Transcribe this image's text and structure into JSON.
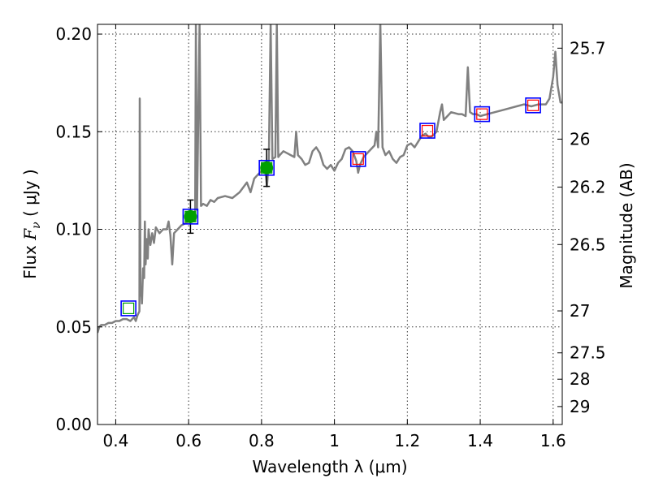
{
  "chart_data": {
    "type": "scatter",
    "xlabel": "Wavelength  λ (μm)",
    "ylabel_prefix": "Flux  ",
    "ylabel_var": "F",
    "ylabel_sub": "ν",
    "ylabel_suffix": "  ( μJy )",
    "y2label": "Magnitude (AB)",
    "xlim": [
      0.35,
      1.625
    ],
    "ylim": [
      0.0,
      0.205
    ],
    "grid": true,
    "x_ticks": [
      0.4,
      0.6,
      0.8,
      1.0,
      1.2,
      1.4,
      1.6
    ],
    "x_tick_labels": [
      "0.4",
      "0.6",
      "0.8",
      "1",
      "1.2",
      "1.4",
      "1.6"
    ],
    "y_ticks": [
      0.0,
      0.05,
      0.1,
      0.15,
      0.2
    ],
    "y_tick_labels": [
      "0.00",
      "0.05",
      "0.10",
      "0.15",
      "0.20"
    ],
    "y2_ticks": [
      {
        "label": "25.7",
        "flux": 0.1928
      },
      {
        "label": "26",
        "flux": 0.1462
      },
      {
        "label": "26.2",
        "flux": 0.1216
      },
      {
        "label": "26.5",
        "flux": 0.0922
      },
      {
        "label": "27",
        "flux": 0.0582
      },
      {
        "label": "27.5",
        "flux": 0.0367
      },
      {
        "label": "28",
        "flux": 0.0232
      },
      {
        "label": "29",
        "flux": 0.0092
      }
    ],
    "series": [
      {
        "kind": "model_spectrum",
        "color": "#808080",
        "points": [
          [
            0.35,
            0.047
          ],
          [
            0.355,
            0.05
          ],
          [
            0.36,
            0.051
          ],
          [
            0.37,
            0.051
          ],
          [
            0.38,
            0.052
          ],
          [
            0.39,
            0.052
          ],
          [
            0.4,
            0.053
          ],
          [
            0.41,
            0.053
          ],
          [
            0.42,
            0.054
          ],
          [
            0.43,
            0.054
          ],
          [
            0.44,
            0.053
          ],
          [
            0.45,
            0.055
          ],
          [
            0.455,
            0.053
          ],
          [
            0.46,
            0.056
          ],
          [
            0.465,
            0.058
          ],
          [
            0.466,
            0.167
          ],
          [
            0.468,
            0.066
          ],
          [
            0.47,
            0.07
          ],
          [
            0.472,
            0.062
          ],
          [
            0.475,
            0.08
          ],
          [
            0.478,
            0.075
          ],
          [
            0.48,
            0.104
          ],
          [
            0.482,
            0.082
          ],
          [
            0.485,
            0.095
          ],
          [
            0.488,
            0.085
          ],
          [
            0.49,
            0.1
          ],
          [
            0.495,
            0.092
          ],
          [
            0.5,
            0.098
          ],
          [
            0.505,
            0.093
          ],
          [
            0.51,
            0.101
          ],
          [
            0.52,
            0.098
          ],
          [
            0.53,
            0.1
          ],
          [
            0.54,
            0.1
          ],
          [
            0.545,
            0.104
          ],
          [
            0.55,
            0.097
          ],
          [
            0.555,
            0.082
          ],
          [
            0.56,
            0.098
          ],
          [
            0.57,
            0.1
          ],
          [
            0.58,
            0.102
          ],
          [
            0.59,
            0.103
          ],
          [
            0.6,
            0.104
          ],
          [
            0.61,
            0.106
          ],
          [
            0.618,
            0.109
          ],
          [
            0.62,
            0.205
          ],
          [
            0.623,
            0.11
          ],
          [
            0.63,
            0.205
          ],
          [
            0.634,
            0.112
          ],
          [
            0.64,
            0.113
          ],
          [
            0.65,
            0.112
          ],
          [
            0.66,
            0.115
          ],
          [
            0.67,
            0.114
          ],
          [
            0.68,
            0.116
          ],
          [
            0.7,
            0.117
          ],
          [
            0.72,
            0.116
          ],
          [
            0.74,
            0.119
          ],
          [
            0.76,
            0.124
          ],
          [
            0.77,
            0.119
          ],
          [
            0.78,
            0.126
          ],
          [
            0.79,
            0.128
          ],
          [
            0.8,
            0.13
          ],
          [
            0.81,
            0.131
          ],
          [
            0.815,
            0.122
          ],
          [
            0.82,
            0.136
          ],
          [
            0.825,
            0.205
          ],
          [
            0.83,
            0.136
          ],
          [
            0.838,
            0.137
          ],
          [
            0.842,
            0.205
          ],
          [
            0.846,
            0.137
          ],
          [
            0.85,
            0.138
          ],
          [
            0.86,
            0.14
          ],
          [
            0.87,
            0.139
          ],
          [
            0.88,
            0.138
          ],
          [
            0.89,
            0.137
          ],
          [
            0.895,
            0.15
          ],
          [
            0.9,
            0.138
          ],
          [
            0.91,
            0.136
          ],
          [
            0.92,
            0.133
          ],
          [
            0.93,
            0.134
          ],
          [
            0.94,
            0.14
          ],
          [
            0.95,
            0.142
          ],
          [
            0.96,
            0.139
          ],
          [
            0.97,
            0.133
          ],
          [
            0.98,
            0.131
          ],
          [
            0.99,
            0.133
          ],
          [
            1.0,
            0.13
          ],
          [
            1.01,
            0.134
          ],
          [
            1.02,
            0.136
          ],
          [
            1.03,
            0.141
          ],
          [
            1.04,
            0.142
          ],
          [
            1.05,
            0.14
          ],
          [
            1.06,
            0.135
          ],
          [
            1.065,
            0.129
          ],
          [
            1.07,
            0.133
          ],
          [
            1.08,
            0.137
          ],
          [
            1.09,
            0.139
          ],
          [
            1.1,
            0.141
          ],
          [
            1.11,
            0.143
          ],
          [
            1.115,
            0.15
          ],
          [
            1.12,
            0.142
          ],
          [
            1.126,
            0.205
          ],
          [
            1.132,
            0.142
          ],
          [
            1.14,
            0.138
          ],
          [
            1.15,
            0.14
          ],
          [
            1.16,
            0.136
          ],
          [
            1.17,
            0.134
          ],
          [
            1.18,
            0.137
          ],
          [
            1.19,
            0.138
          ],
          [
            1.2,
            0.143
          ],
          [
            1.21,
            0.144
          ],
          [
            1.22,
            0.142
          ],
          [
            1.23,
            0.145
          ],
          [
            1.24,
            0.148
          ],
          [
            1.25,
            0.149
          ],
          [
            1.26,
            0.147
          ],
          [
            1.27,
            0.148
          ],
          [
            1.28,
            0.15
          ],
          [
            1.29,
            0.16
          ],
          [
            1.295,
            0.164
          ],
          [
            1.3,
            0.156
          ],
          [
            1.31,
            0.158
          ],
          [
            1.32,
            0.16
          ],
          [
            1.34,
            0.159
          ],
          [
            1.35,
            0.159
          ],
          [
            1.36,
            0.158
          ],
          [
            1.366,
            0.183
          ],
          [
            1.372,
            0.16
          ],
          [
            1.38,
            0.159
          ],
          [
            1.39,
            0.159
          ],
          [
            1.4,
            0.158
          ],
          [
            1.42,
            0.159
          ],
          [
            1.44,
            0.16
          ],
          [
            1.46,
            0.161
          ],
          [
            1.48,
            0.162
          ],
          [
            1.5,
            0.163
          ],
          [
            1.52,
            0.164
          ],
          [
            1.54,
            0.163
          ],
          [
            1.56,
            0.164
          ],
          [
            1.58,
            0.164
          ],
          [
            1.59,
            0.167
          ],
          [
            1.6,
            0.178
          ],
          [
            1.606,
            0.191
          ],
          [
            1.612,
            0.174
          ],
          [
            1.62,
            0.165
          ],
          [
            1.625,
            0.165
          ]
        ]
      },
      {
        "kind": "observed_photometry",
        "marker": "circle",
        "color": "#00a000",
        "points": [
          {
            "x": 0.605,
            "y": 0.1065,
            "yerr": 0.0085
          },
          {
            "x": 0.814,
            "y": 0.1315,
            "yerr": 0.0095
          }
        ]
      },
      {
        "kind": "photometry_squares",
        "marker": "square",
        "edge_color": "#0000ff",
        "points": [
          {
            "x": 0.435,
            "y": 0.0595,
            "inner_color": "#00a000"
          },
          {
            "x": 0.605,
            "y": 0.1065,
            "inner_color": "#00a000"
          },
          {
            "x": 0.814,
            "y": 0.1315,
            "inner_color": "#00a000"
          },
          {
            "x": 1.065,
            "y": 0.136,
            "inner_color": "#ff0000"
          },
          {
            "x": 1.255,
            "y": 0.1505,
            "inner_color": "#ff0000"
          },
          {
            "x": 1.405,
            "y": 0.159,
            "inner_color": "#ff0000"
          },
          {
            "x": 1.545,
            "y": 0.1635,
            "inner_color": "#ff0000"
          }
        ]
      }
    ]
  }
}
